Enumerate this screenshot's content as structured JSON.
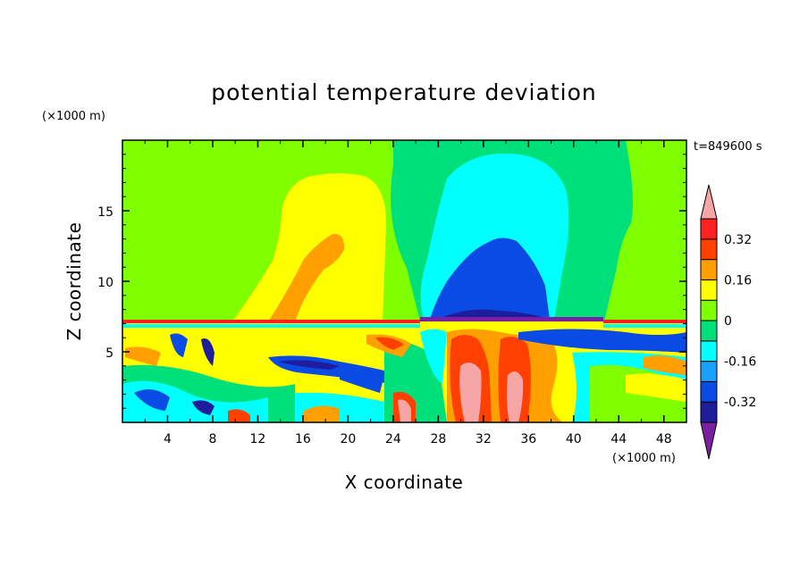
{
  "chart_data": {
    "type": "heatmap",
    "title": "potential temperature deviation",
    "xlabel": "X coordinate",
    "ylabel": "Z coordinate",
    "x_unit": "(×1000 m)",
    "z_unit": "(×1000 m)",
    "time_label": "t=849600 s",
    "xlim": [
      0,
      50
    ],
    "zlim": [
      0,
      20
    ],
    "x_ticks": [
      4,
      8,
      12,
      16,
      20,
      24,
      28,
      32,
      36,
      40,
      44,
      48
    ],
    "z_ticks": [
      5,
      10,
      15
    ],
    "colorbar": {
      "levels": [
        -0.4,
        -0.32,
        -0.24,
        -0.16,
        -0.08,
        0,
        0.08,
        0.16,
        0.24,
        0.32,
        0.4
      ],
      "colors": [
        "#7a1fa2",
        "#1e1e9c",
        "#0a4be6",
        "#1aa0ff",
        "#00ffff",
        "#00e07a",
        "#80ff00",
        "#ffff00",
        "#ffa000",
        "#ff4000",
        "#ff2020",
        "#f7a6a8"
      ],
      "tick_labels": [
        "0.32",
        "0.16",
        "0",
        "-0.16",
        "-0.32"
      ],
      "tick_values": [
        0.32,
        0.16,
        0,
        -0.16,
        -0.32
      ]
    }
  }
}
